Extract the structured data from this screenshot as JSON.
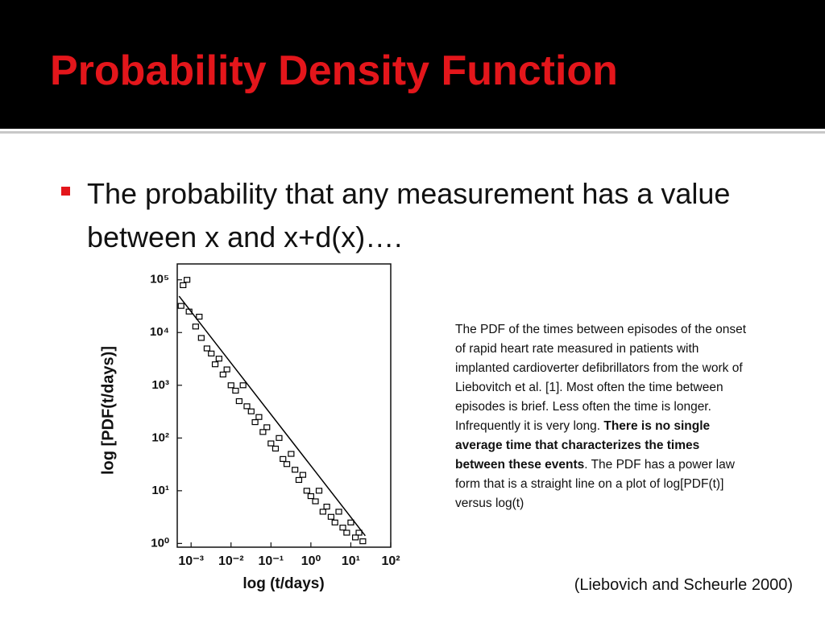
{
  "header": {
    "title": "Probability Density Function"
  },
  "bullets": [
    "The probability that any measurement has a value between x and x+d(x)…."
  ],
  "caption": [
    "The PDF of the times between episodes of the onset of rapid heart rate measured in patients with implanted cardioverter defibrillators from the work of Liebovitch et al. [1]. Most often the time between episodes is brief. Less often the time is longer. Infrequently it is very long. ",
    "There is no single average time that characterizes the times between these events",
    ". The PDF has a power law form that is a straight line on a plot of log[PDF(t)] versus log(t)"
  ],
  "citation": "(Liebovich and Scheurle 2000)",
  "chart_data": {
    "type": "scatter",
    "xlabel": "log (t/days)",
    "ylabel": "log [PDF(t/days)]",
    "xscale": "log",
    "yscale": "log",
    "xlim": [
      0.00045,
      100
    ],
    "ylim": [
      0.85,
      200000
    ],
    "xticks": [
      {
        "value": 0.001,
        "label": "10⁻³"
      },
      {
        "value": 0.01,
        "label": "10⁻²"
      },
      {
        "value": 0.1,
        "label": "10⁻¹"
      },
      {
        "value": 1,
        "label": "10⁰"
      },
      {
        "value": 10,
        "label": "10¹"
      },
      {
        "value": 100,
        "label": "10²"
      }
    ],
    "yticks": [
      {
        "value": 1,
        "label": "10⁰"
      },
      {
        "value": 10,
        "label": "10¹"
      },
      {
        "value": 100,
        "label": "10²"
      },
      {
        "value": 1000,
        "label": "10³"
      },
      {
        "value": 10000,
        "label": "10⁴"
      },
      {
        "value": 100000,
        "label": "10⁵"
      }
    ],
    "series": [
      {
        "color": "#000000",
        "marker": "square",
        "x": [
          0.00063,
          0.00079,
          0.00056,
          0.00089,
          0.0013,
          0.0016,
          0.0018,
          0.0025,
          0.0032,
          0.004,
          0.005,
          0.0063,
          0.0079,
          0.01,
          0.013,
          0.016,
          0.02,
          0.025,
          0.032,
          0.04,
          0.05,
          0.063,
          0.079,
          0.1,
          0.13,
          0.16,
          0.2,
          0.25,
          0.32,
          0.4,
          0.5,
          0.63,
          0.79,
          1,
          1.3,
          1.6,
          2,
          2.5,
          3.2,
          4,
          5,
          6.3,
          7.9,
          10,
          13,
          16,
          20
        ],
        "values": [
          79000,
          100000,
          32000,
          25000,
          13000,
          20000,
          7900,
          5000,
          4000,
          2500,
          3200,
          1600,
          2000,
          1000,
          790,
          500,
          1000,
          400,
          320,
          200,
          250,
          130,
          160,
          79,
          63,
          100,
          40,
          32,
          50,
          25,
          16,
          20,
          10,
          7.9,
          6.3,
          10,
          4,
          5,
          3.2,
          2.5,
          4,
          2,
          1.6,
          2.5,
          1.3,
          1.6,
          1.1
        ]
      },
      {
        "color": "#000000",
        "marker": "line",
        "x": [
          0.0005,
          23
        ],
        "values": [
          49000,
          1.4
        ]
      }
    ]
  }
}
